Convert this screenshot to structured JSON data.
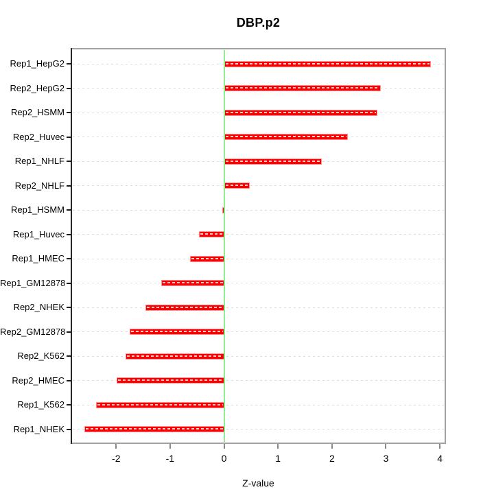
{
  "title": "DBP.p2",
  "x_axis": {
    "label": "Z-value",
    "ticks": [
      -2,
      -1,
      0,
      1,
      2,
      3,
      4
    ]
  },
  "colors": {
    "bar_fill": "#fa0000",
    "bar_edge": "#ff8f8f",
    "bar_stripe": "#ffd0d0",
    "zero_line": "#8dee8d",
    "gridline": "#dcdcdc",
    "box_border": "#a2a2a2",
    "left_axis": "#262626",
    "y_tick": "#1a1a1a",
    "x_tick": "#8a8a8a",
    "text": "#000000",
    "background": "#ffffff"
  },
  "chart_data": {
    "type": "bar",
    "orientation": "horizontal",
    "title": "DBP.p2",
    "xlabel": "Z-value",
    "ylabel": "",
    "categories": [
      "Rep1_HepG2",
      "Rep2_HepG2",
      "Rep2_HSMM",
      "Rep2_Huvec",
      "Rep1_NHLF",
      "Rep2_NHLF",
      "Rep1_HSMM",
      "Rep1_Huvec",
      "Rep1_HMEC",
      "Rep1_GM12878",
      "Rep2_NHEK",
      "Rep2_GM12878",
      "Rep2_K562",
      "Rep2_HMEC",
      "Rep1_K562",
      "Rep1_NHEK"
    ],
    "values": [
      3.83,
      2.9,
      2.84,
      2.29,
      1.81,
      0.47,
      -0.03,
      -0.46,
      -0.63,
      -1.16,
      -1.46,
      -1.75,
      -1.82,
      -1.99,
      -2.37,
      -2.59
    ],
    "xlim": [
      -2.83,
      4.1
    ],
    "xticks": [
      -2,
      -1,
      0,
      1,
      2,
      3,
      4
    ],
    "zero_line_x": 0,
    "grid": "horizontal-dotted",
    "legend": false,
    "sorted": "descending-top-to-bottom"
  }
}
